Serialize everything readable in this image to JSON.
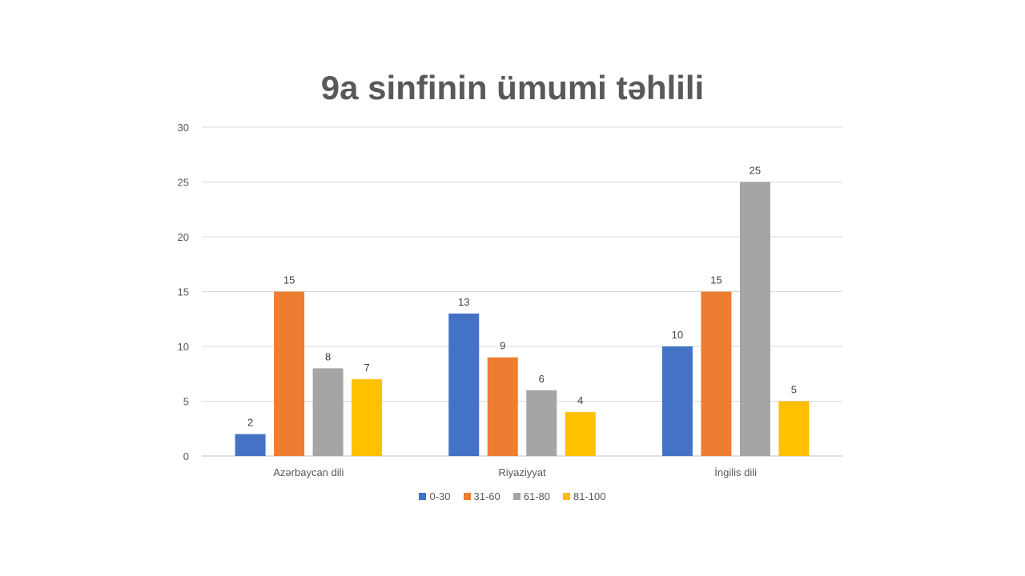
{
  "chart_data": {
    "type": "bar",
    "title": "9a sinfinin ümumi təhlili",
    "categories": [
      "Azərbaycan dili",
      "Riyaziyyat",
      "İngilis dili"
    ],
    "series": [
      {
        "name": "0-30",
        "color": "#4472C4",
        "values": [
          2,
          13,
          10
        ]
      },
      {
        "name": "31-60",
        "color": "#ED7D31",
        "values": [
          15,
          9,
          15
        ]
      },
      {
        "name": "61-80",
        "color": "#A5A5A5",
        "values": [
          8,
          6,
          25
        ]
      },
      {
        "name": "81-100",
        "color": "#FFC000",
        "values": [
          7,
          4,
          5
        ]
      }
    ],
    "ylim": [
      0,
      30
    ],
    "yticks": [
      0,
      5,
      10,
      15,
      20,
      25,
      30
    ],
    "grid": true,
    "legend_position": "bottom",
    "data_labels": true
  }
}
